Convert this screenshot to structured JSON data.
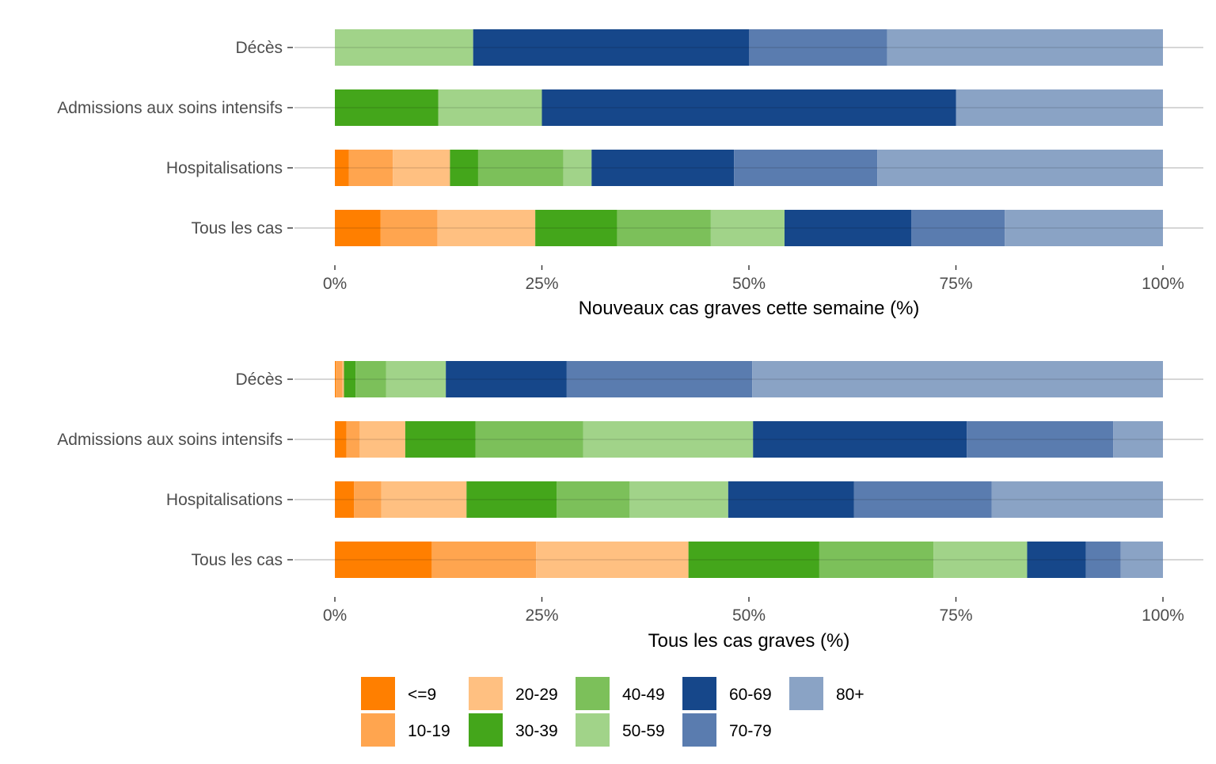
{
  "colors": {
    "<=9": "#FF7F00",
    "10-19": "#FFA54F",
    "20-29": "#FFC081",
    "30-39": "#44A61B",
    "40-49": "#7CC05A",
    "50-59": "#A1D389",
    "60-69": "#16478A",
    "70-79": "#5A7CAF",
    "80+": "#8AA3C5"
  },
  "legend": {
    "items": [
      "<=9",
      "10-19",
      "20-29",
      "30-39",
      "40-49",
      "50-59",
      "60-69",
      "70-79",
      "80+"
    ]
  },
  "chart_data": [
    {
      "type": "bar",
      "orientation": "horizontal",
      "stacked": true,
      "xlabel": "Nouveaux cas graves cette semaine (%)",
      "xlim": [
        0,
        100
      ],
      "xticks": [
        "0%",
        "25%",
        "50%",
        "75%",
        "100%"
      ],
      "categories": [
        "Décès",
        "Admissions aux soins intensifs",
        "Hospitalisations",
        "Tous les cas"
      ],
      "series": [
        {
          "name": "<=9",
          "values": [
            0,
            0,
            1.7,
            5.5
          ]
        },
        {
          "name": "10-19",
          "values": [
            0,
            0,
            5.3,
            6.9
          ]
        },
        {
          "name": "20-29",
          "values": [
            0,
            0,
            6.9,
            11.8
          ]
        },
        {
          "name": "30-39",
          "values": [
            0,
            12.5,
            3.4,
            9.9
          ]
        },
        {
          "name": "40-49",
          "values": [
            0,
            0,
            10.3,
            11.3
          ]
        },
        {
          "name": "50-59",
          "values": [
            16.7,
            12.5,
            3.4,
            8.9
          ]
        },
        {
          "name": "60-69",
          "values": [
            33.3,
            50.0,
            17.2,
            15.3
          ]
        },
        {
          "name": "70-79",
          "values": [
            16.7,
            0,
            17.3,
            11.3
          ]
        },
        {
          "name": "80+",
          "values": [
            33.3,
            25.0,
            34.5,
            19.1
          ]
        }
      ]
    },
    {
      "type": "bar",
      "orientation": "horizontal",
      "stacked": true,
      "xlabel": "Tous les cas graves (%)",
      "xlim": [
        0,
        100
      ],
      "xticks": [
        "0%",
        "25%",
        "50%",
        "75%",
        "100%"
      ],
      "categories": [
        "Décès",
        "Admissions aux soins intensifs",
        "Hospitalisations",
        "Tous les cas"
      ],
      "series": [
        {
          "name": "<=9",
          "values": [
            0.1,
            1.4,
            2.3,
            11.7
          ]
        },
        {
          "name": "10-19",
          "values": [
            0.8,
            1.6,
            3.3,
            12.6
          ]
        },
        {
          "name": "20-29",
          "values": [
            0.2,
            5.5,
            10.3,
            18.4
          ]
        },
        {
          "name": "30-39",
          "values": [
            1.4,
            8.5,
            10.9,
            15.8
          ]
        },
        {
          "name": "40-49",
          "values": [
            3.7,
            13.0,
            8.8,
            13.8
          ]
        },
        {
          "name": "50-59",
          "values": [
            7.2,
            20.5,
            11.9,
            11.3
          ]
        },
        {
          "name": "60-69",
          "values": [
            14.6,
            25.8,
            15.2,
            7.1
          ]
        },
        {
          "name": "70-79",
          "values": [
            22.4,
            17.7,
            16.6,
            4.2
          ]
        },
        {
          "name": "80+",
          "values": [
            49.6,
            6.0,
            20.7,
            5.1
          ]
        }
      ]
    }
  ]
}
